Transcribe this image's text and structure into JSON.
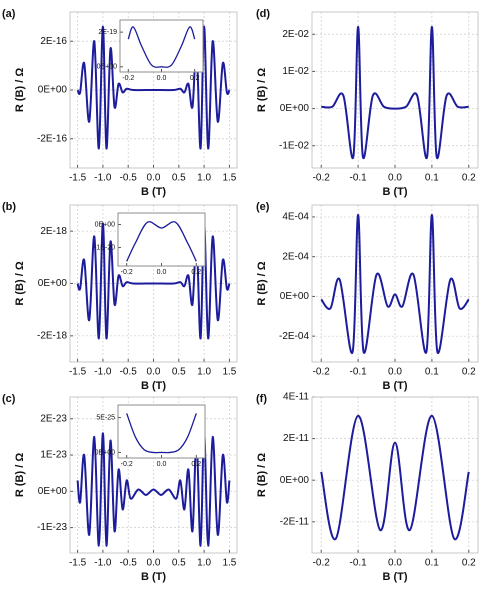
{
  "chart_data": [
    {
      "type": "line",
      "label": "(a)",
      "xlabel": "B (T)",
      "ylabel": "R (B) / Ω",
      "color": "#1c1c9c",
      "grid": true,
      "xlim": [
        -1.65,
        1.65
      ],
      "ylim": [
        -3.2e-16,
        3.2e-16
      ],
      "xticks": [
        -1.5,
        {
          "value": -1,
          "label": "-1.0"
        },
        -0.5,
        {
          "value": 0,
          "label": "0.0"
        },
        0.5,
        {
          "value": 1,
          "label": "1.0"
        },
        1.5
      ],
      "yticks": [
        {
          "value": -2e-16,
          "label": "-2E-16"
        },
        {
          "value": 0,
          "label": "0E+00"
        },
        {
          "value": 2e-16,
          "label": "2E-16"
        }
      ],
      "x": [
        -1.5,
        -1.45,
        -1.37,
        -1.27,
        -1.17,
        -1.08,
        -1.0,
        -0.93,
        -0.85,
        -0.77,
        -0.69,
        -0.61,
        -0.53,
        -0.4,
        0,
        0.4,
        0.53,
        0.61,
        0.69,
        0.77,
        0.85,
        0.93,
        1.0,
        1.08,
        1.17,
        1.27,
        1.37,
        1.45,
        1.5
      ],
      "values": [
        0,
        -1e-17,
        1.1e-16,
        -1.3e-16,
        2e-16,
        -2.4e-16,
        2.6e-16,
        -2.4e-16,
        1.7e-16,
        -7e-17,
        2.5e-17,
        -1e-17,
        5e-18,
        0,
        0,
        0,
        5e-18,
        -1e-17,
        2.5e-17,
        -7e-17,
        1.7e-16,
        -2.4e-16,
        2.6e-16,
        -2.4e-16,
        2e-16,
        -1.3e-16,
        1.1e-16,
        -1e-17,
        0
      ],
      "inset": {
        "xlim": [
          -0.25,
          0.25
        ],
        "ylim": [
          -3e-20,
          2.7e-19
        ],
        "xticks": [
          -0.2,
          {
            "value": 0,
            "label": "0.0"
          },
          0.2
        ],
        "yticks": [
          {
            "value": 0,
            "label": "0E+00"
          },
          {
            "value": 2e-19,
            "label": "2E-19"
          }
        ],
        "x": [
          -0.2,
          -0.17,
          -0.12,
          -0.06,
          0,
          0.06,
          0.12,
          0.17,
          0.2
        ],
        "values": [
          1.6e-19,
          2.3e-19,
          1.2e-19,
          1e-20,
          0,
          1e-20,
          1.2e-19,
          2.3e-19,
          1.6e-19
        ]
      }
    },
    {
      "type": "line",
      "label": "(b)",
      "xlabel": "B (T)",
      "ylabel": "R (B) / Ω",
      "color": "#1c1c9c",
      "grid": true,
      "xlim": [
        -1.65,
        1.65
      ],
      "ylim": [
        -3e-18,
        3e-18
      ],
      "xticks": [
        -1.5,
        {
          "value": -1,
          "label": "-1.0"
        },
        -0.5,
        {
          "value": 0,
          "label": "0.0"
        },
        0.5,
        {
          "value": 1,
          "label": "1.0"
        },
        1.5
      ],
      "yticks": [
        {
          "value": -2e-18,
          "label": "-2E-18"
        },
        {
          "value": 0,
          "label": "0E+00"
        },
        {
          "value": 2e-18,
          "label": "2E-18"
        }
      ],
      "x": [
        -1.5,
        -1.45,
        -1.37,
        -1.27,
        -1.17,
        -1.08,
        -1.0,
        -0.93,
        -0.85,
        -0.77,
        -0.69,
        -0.61,
        -0.53,
        -0.4,
        0,
        0.4,
        0.53,
        0.61,
        0.69,
        0.77,
        0.85,
        0.93,
        1.0,
        1.08,
        1.17,
        1.27,
        1.37,
        1.45,
        1.5
      ],
      "values": [
        0,
        -2e-19,
        9e-19,
        -1.4e-18,
        1.8e-18,
        -2.1e-18,
        2.3e-18,
        -2.1e-18,
        1.6e-18,
        -8e-19,
        3e-19,
        -1e-19,
        5e-20,
        0,
        0,
        0,
        5e-20,
        -1e-19,
        3e-19,
        -8e-19,
        1.6e-18,
        -2.1e-18,
        2.3e-18,
        -2.1e-18,
        1.8e-18,
        -1.4e-18,
        9e-19,
        -2e-19,
        0
      ],
      "inset": {
        "xlim": [
          -0.25,
          0.25
        ],
        "ylim": [
          -1.8e-20,
          5e-21
        ],
        "xticks": [
          -0.2,
          {
            "value": 0,
            "label": "0.0"
          },
          0.2
        ],
        "yticks": [
          {
            "value": -1e-20,
            "label": "-1E-20"
          },
          {
            "value": 0,
            "label": "0E+00"
          }
        ],
        "x": [
          -0.2,
          -0.15,
          -0.08,
          0,
          0.08,
          0.15,
          0.2
        ],
        "values": [
          -1.6e-20,
          -8e-21,
          1e-21,
          -1.5e-21,
          1e-21,
          -8e-21,
          -1.6e-20
        ]
      }
    },
    {
      "type": "line",
      "label": "(c)",
      "xlabel": "B (T)",
      "ylabel": "R (B) / Ω",
      "color": "#1c1c9c",
      "grid": true,
      "xlim": [
        -1.65,
        1.65
      ],
      "ylim": [
        -1.7e-23,
        2.6e-23
      ],
      "xticks": [
        -1.5,
        {
          "value": -1,
          "label": "-1.0"
        },
        -0.5,
        {
          "value": 0,
          "label": "0.0"
        },
        0.5,
        {
          "value": 1,
          "label": "1.0"
        },
        1.5
      ],
      "yticks": [
        {
          "value": -1e-23,
          "label": "-1E-23"
        },
        {
          "value": 0,
          "label": "0E+00"
        },
        {
          "value": 1e-23,
          "label": "1E-23"
        },
        {
          "value": 2e-23,
          "label": "2E-23"
        }
      ],
      "x": [
        -1.5,
        -1.45,
        -1.37,
        -1.27,
        -1.17,
        -1.08,
        -1.0,
        -0.93,
        -0.85,
        -0.77,
        -0.69,
        -0.61,
        -0.53,
        -0.45,
        -0.3,
        -0.15,
        0,
        0.15,
        0.3,
        0.45,
        0.53,
        0.61,
        0.69,
        0.77,
        0.85,
        0.93,
        1.0,
        1.08,
        1.17,
        1.27,
        1.37,
        1.45,
        1.5
      ],
      "values": [
        3e-24,
        -3e-24,
        1e-23,
        -1.2e-23,
        1.5e-23,
        -1.5e-23,
        1.6e-23,
        -1.5e-23,
        1.4e-23,
        -1.1e-23,
        6e-24,
        -5e-24,
        3e-24,
        -2e-24,
        5e-25,
        -1e-24,
        5e-25,
        -1e-24,
        5e-25,
        -2e-24,
        3e-24,
        -5e-24,
        6e-24,
        -1.1e-23,
        1.4e-23,
        -1.5e-23,
        1.6e-23,
        -1.5e-23,
        1.5e-23,
        -1.2e-23,
        1e-23,
        -3e-24,
        3e-24
      ],
      "inset": {
        "xlim": [
          -0.25,
          0.25
        ],
        "ylim": [
          -8e-26,
          6.8e-25
        ],
        "xticks": [
          -0.2,
          {
            "value": 0,
            "label": "0.0"
          },
          0.2
        ],
        "yticks": [
          {
            "value": 0,
            "label": "0E+00"
          },
          {
            "value": 5e-25,
            "label": "5E-25"
          }
        ],
        "x": [
          -0.2,
          -0.15,
          -0.1,
          -0.05,
          0,
          0.05,
          0.1,
          0.15,
          0.2
        ],
        "values": [
          5.6e-25,
          2.2e-25,
          4e-26,
          0,
          0,
          0,
          4e-26,
          2.2e-25,
          5.6e-25
        ]
      }
    },
    {
      "type": "line",
      "label": "(d)",
      "xlabel": "B (T)",
      "ylabel": "R (B) / Ω",
      "color": "#1c1c9c",
      "grid": true,
      "xlim": [
        -0.225,
        0.225
      ],
      "ylim": [
        -0.016,
        0.026
      ],
      "xticks": [
        -0.2,
        -0.1,
        {
          "value": 0,
          "label": "0.0"
        },
        0.1,
        0.2
      ],
      "yticks": [
        {
          "value": -0.01,
          "label": "-1E-02"
        },
        {
          "value": 0,
          "label": "0E+00"
        },
        {
          "value": 0.01,
          "label": "1E-02"
        },
        {
          "value": 0.02,
          "label": "2E-02"
        }
      ],
      "x": [
        -0.2,
        -0.17,
        -0.14,
        -0.113,
        -0.1,
        -0.087,
        -0.06,
        -0.03,
        0,
        0.03,
        0.06,
        0.087,
        0.1,
        0.113,
        0.14,
        0.17,
        0.2
      ],
      "values": [
        0.0005,
        0.0005,
        0.0035,
        -0.013,
        0.022,
        -0.013,
        0.0035,
        0.0005,
        0,
        0.0005,
        0.0035,
        -0.013,
        0.022,
        -0.013,
        0.0035,
        0.0005,
        0.0005
      ]
    },
    {
      "type": "line",
      "label": "(e)",
      "xlabel": "B (T)",
      "ylabel": "R (B) / Ω",
      "color": "#1c1c9c",
      "grid": true,
      "xlim": [
        -0.225,
        0.225
      ],
      "ylim": [
        -0.00033,
        0.00046
      ],
      "xticks": [
        -0.2,
        -0.1,
        {
          "value": 0,
          "label": "0.0"
        },
        0.1,
        0.2
      ],
      "yticks": [
        {
          "value": -0.0002,
          "label": "-2E-04"
        },
        {
          "value": 0,
          "label": "0E+00"
        },
        {
          "value": 0.0002,
          "label": "2E-04"
        },
        {
          "value": 0.0004,
          "label": "4E-04"
        }
      ],
      "x": [
        -0.2,
        -0.175,
        -0.15,
        -0.115,
        -0.1,
        -0.085,
        -0.05,
        -0.02,
        0,
        0.02,
        0.05,
        0.085,
        0.1,
        0.115,
        0.15,
        0.175,
        0.2
      ],
      "values": [
        -1.5e-05,
        -6e-05,
        8.5e-05,
        -0.00028,
        0.00041,
        -0.00028,
        0.00011,
        -5e-05,
        1e-05,
        -5e-05,
        0.00011,
        -0.00028,
        0.00041,
        -0.00028,
        8.5e-05,
        -6e-05,
        -1.5e-05
      ]
    },
    {
      "type": "line",
      "label": "(f)",
      "xlabel": "B (T)",
      "ylabel": "R (B) / Ω",
      "color": "#1c1c9c",
      "grid": true,
      "xlim": [
        -0.225,
        0.225
      ],
      "ylim": [
        -3.5e-11,
        4e-11
      ],
      "xticks": [
        -0.2,
        -0.1,
        {
          "value": 0,
          "label": "0.0"
        },
        0.1,
        0.2
      ],
      "yticks": [
        {
          "value": -2e-11,
          "label": "-2E-11"
        },
        {
          "value": 0,
          "label": "0E+00"
        },
        {
          "value": 2e-11,
          "label": "2E-11"
        },
        {
          "value": 4e-11,
          "label": "4E-11"
        }
      ],
      "x": [
        -0.2,
        -0.16,
        -0.1,
        -0.04,
        0,
        0.04,
        0.1,
        0.16,
        0.2
      ],
      "values": [
        4e-12,
        -2.8e-11,
        3.1e-11,
        -2.4e-11,
        1.8e-11,
        -2.4e-11,
        3.1e-11,
        -2.8e-11,
        4e-12
      ]
    }
  ]
}
